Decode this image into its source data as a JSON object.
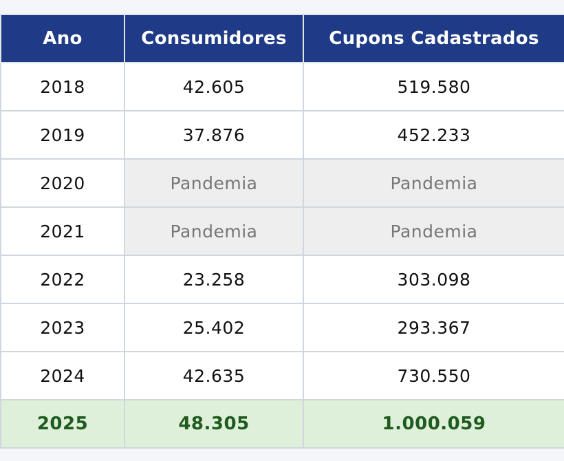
{
  "chart_data": {
    "type": "table",
    "columns": [
      "Ano",
      "Consumidores",
      "Cupons Cadastrados"
    ],
    "rows": [
      {
        "ano": "2018",
        "consumidores": "42.605",
        "cupons": "519.580",
        "status": "normal"
      },
      {
        "ano": "2019",
        "consumidores": "37.876",
        "cupons": "452.233",
        "status": "normal"
      },
      {
        "ano": "2020",
        "consumidores": "Pandemia",
        "cupons": "Pandemia",
        "status": "pandemic"
      },
      {
        "ano": "2021",
        "consumidores": "Pandemia",
        "cupons": "Pandemia",
        "status": "pandemic"
      },
      {
        "ano": "2022",
        "consumidores": "23.258",
        "cupons": "303.098",
        "status": "normal"
      },
      {
        "ano": "2023",
        "consumidores": "25.402",
        "cupons": "293.367",
        "status": "normal"
      },
      {
        "ano": "2024",
        "consumidores": "42.635",
        "cupons": "730.550",
        "status": "normal"
      },
      {
        "ano": "2025",
        "consumidores": "48.305",
        "cupons": "1.000.059",
        "status": "highlight"
      }
    ]
  },
  "colors": {
    "header_bg": "#1f3a86",
    "pandemic_bg": "#eeeeee",
    "highlight_bg": "#dff0da",
    "highlight_text": "#1f5a1f"
  }
}
